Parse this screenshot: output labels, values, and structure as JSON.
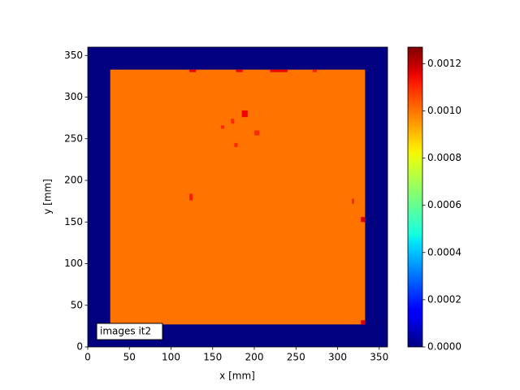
{
  "chart_data": {
    "type": "heatmap",
    "x_label": "x [mm]",
    "y_label": "y [mm]",
    "annotation": "images it2",
    "xlim": [
      0,
      360
    ],
    "ylim": [
      0,
      360
    ],
    "xticks": [
      0,
      50,
      100,
      150,
      200,
      250,
      300,
      350
    ],
    "yticks": [
      0,
      50,
      100,
      150,
      200,
      250,
      300,
      350
    ],
    "colormap": "jet",
    "clim": [
      0,
      0.00127
    ],
    "cticks": [
      {
        "value": 0,
        "label": "0.0000"
      },
      {
        "value": 0.0002,
        "label": "0.0002"
      },
      {
        "value": 0.0004,
        "label": "0.0004"
      },
      {
        "value": 0.0006,
        "label": "0.0006"
      },
      {
        "value": 0.0008,
        "label": "0.0008"
      },
      {
        "value": 0.001,
        "label": "0.0010"
      },
      {
        "value": 0.0012,
        "label": "0.0012"
      }
    ],
    "cells": [
      {
        "x": [
          0,
          360
        ],
        "y": [
          0,
          360
        ],
        "value": 0
      },
      {
        "x": [
          27,
          333
        ],
        "y": [
          27,
          333
        ],
        "value": 0.001
      },
      {
        "x": [
          122,
          130
        ],
        "y": [
          330,
          333
        ],
        "value": 0.00115
      },
      {
        "x": [
          178,
          186
        ],
        "y": [
          330,
          333
        ],
        "value": 0.00115
      },
      {
        "x": [
          219,
          240
        ],
        "y": [
          330,
          333
        ],
        "value": 0.00115
      },
      {
        "x": [
          270,
          275
        ],
        "y": [
          330,
          333
        ],
        "value": 0.00112
      },
      {
        "x": [
          185,
          192
        ],
        "y": [
          276,
          284
        ],
        "value": 0.00115
      },
      {
        "x": [
          172,
          176
        ],
        "y": [
          268,
          274
        ],
        "value": 0.0011
      },
      {
        "x": [
          200,
          206
        ],
        "y": [
          254,
          260
        ],
        "value": 0.0011
      },
      {
        "x": [
          176,
          180
        ],
        "y": [
          240,
          245
        ],
        "value": 0.0011
      },
      {
        "x": [
          160,
          164
        ],
        "y": [
          262,
          266
        ],
        "value": 0.0011
      },
      {
        "x": [
          122,
          126
        ],
        "y": [
          176,
          184
        ],
        "value": 0.00112
      },
      {
        "x": [
          328,
          333
        ],
        "y": [
          150,
          156
        ],
        "value": 0.00117
      },
      {
        "x": [
          317,
          320
        ],
        "y": [
          172,
          178
        ],
        "value": 0.0011
      },
      {
        "x": [
          328,
          333
        ],
        "y": [
          27,
          32
        ],
        "value": 0.00117
      }
    ]
  }
}
